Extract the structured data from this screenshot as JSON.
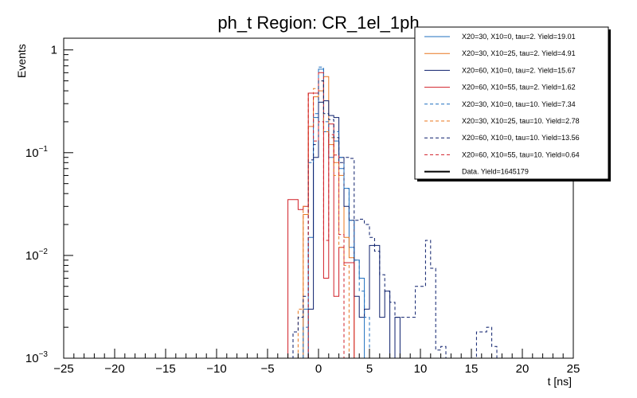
{
  "chart_data": {
    "type": "step-histogram",
    "title": "ph_t Region: CR_1el_1ph",
    "xlabel": "t [ns]",
    "ylabel": "Events",
    "xlim": [
      -25,
      25
    ],
    "ylim": [
      0.001,
      1.3
    ],
    "yscale": "log",
    "bin_width": 0.5,
    "grid": false,
    "legend_position": "top-right",
    "x_ticks": [
      {
        "value": -25,
        "label": "−25"
      },
      {
        "value": -20,
        "label": "−20"
      },
      {
        "value": -15,
        "label": "−15"
      },
      {
        "value": -10,
        "label": "−10"
      },
      {
        "value": -5,
        "label": "−5"
      },
      {
        "value": 0,
        "label": "0"
      },
      {
        "value": 5,
        "label": "5"
      },
      {
        "value": 10,
        "label": "10"
      },
      {
        "value": 15,
        "label": "15"
      },
      {
        "value": 20,
        "label": "20"
      },
      {
        "value": 25,
        "label": "25"
      }
    ],
    "y_ticks": [
      {
        "value": 1,
        "label": "1",
        "mantissa": "",
        "exponent": ""
      },
      {
        "value": 0.1,
        "label": "",
        "mantissa": "10",
        "exponent": "−1"
      },
      {
        "value": 0.01,
        "label": "",
        "mantissa": "10",
        "exponent": "−2"
      },
      {
        "value": 0.001,
        "label": "",
        "mantissa": "10",
        "exponent": "−3"
      }
    ],
    "series": [
      {
        "name": "X20=30, X10=0, tau=2. Yield=19.01",
        "color": "#1f6fbf",
        "dash": "solid",
        "bins": [
          [
            -1.5,
            0.003
          ],
          [
            -1,
            0.015
          ],
          [
            -0.5,
            0.22
          ],
          [
            0,
            0.65
          ],
          [
            0.5,
            0.16
          ],
          [
            1,
            0.09
          ],
          [
            1.5,
            0.13
          ],
          [
            2,
            0.07
          ],
          [
            2.5,
            0.045
          ],
          [
            3,
            0.012
          ],
          [
            3.5,
            0.009
          ],
          [
            4,
            0.006
          ]
        ]
      },
      {
        "name": "X20=30, X10=25, tau=2. Yield=4.91",
        "color": "#e8761e",
        "dash": "solid",
        "bins": [
          [
            -1.5,
            0.025
          ],
          [
            -1,
            0.18
          ],
          [
            -0.5,
            0.35
          ],
          [
            0,
            0.4
          ],
          [
            0.5,
            0.55
          ],
          [
            1,
            0.12
          ],
          [
            1.5,
            0.08
          ],
          [
            2,
            0.06
          ],
          [
            2.5,
            0.015
          ],
          [
            3,
            0.0095
          ]
        ]
      },
      {
        "name": "X20=60, X10=0, tau=2. Yield=15.67",
        "color": "#0b1e6b",
        "dash": "solid",
        "bins": [
          [
            -1,
            0.003
          ],
          [
            -0.5,
            0.09
          ],
          [
            0,
            0.31
          ],
          [
            0.5,
            0.32
          ],
          [
            1,
            0.23
          ],
          [
            1.5,
            0.22
          ],
          [
            2,
            0.09
          ],
          [
            2.5,
            0.03
          ],
          [
            3,
            0.022
          ],
          [
            3.5,
            0.004
          ],
          [
            4,
            0.0025
          ],
          [
            4.5,
            0.003
          ],
          [
            5,
            0.0125
          ],
          [
            5.5,
            0.0125
          ],
          [
            6,
            0.0025
          ],
          [
            6.5,
            0.0045
          ],
          [
            7,
            0.001
          ],
          [
            7.5,
            0.0025
          ],
          [
            8,
            0.001
          ]
        ]
      },
      {
        "name": "X20=60, X10=55, tau=2. Yield=1.62",
        "color": "#d11f27",
        "dash": "solid",
        "bins": [
          [
            -3,
            0.035
          ],
          [
            -2.5,
            0.035
          ],
          [
            -2,
            0.028
          ],
          [
            -1.5,
            0.03
          ],
          [
            -1,
            0.38
          ],
          [
            -0.5,
            0.38
          ],
          [
            0,
            0.6
          ],
          [
            0.5,
            0.006
          ],
          [
            1,
            0.19
          ],
          [
            1.5,
            0.004
          ],
          [
            2,
            0.012
          ],
          [
            2.5,
            0.0085
          ],
          [
            3,
            0.0085
          ]
        ]
      },
      {
        "name": "X20=30, X10=0, tau=10. Yield=7.34",
        "color": "#1f6fbf",
        "dash": "dashed",
        "bins": [
          [
            -1.5,
            0.002
          ],
          [
            -1,
            0.08
          ],
          [
            -0.5,
            0.24
          ],
          [
            0,
            0.68
          ],
          [
            0.5,
            0.2
          ],
          [
            1,
            0.14
          ],
          [
            1.5,
            0.16
          ],
          [
            2,
            0.09
          ],
          [
            2.5,
            0.045
          ],
          [
            3,
            0.022
          ],
          [
            3.5,
            0.009
          ],
          [
            4,
            0.0045
          ],
          [
            4.5,
            0.0025
          ]
        ]
      },
      {
        "name": "X20=30, X10=25, tau=10. Yield=2.78",
        "color": "#e8761e",
        "dash": "dashed",
        "bins": [
          [
            -2,
            0.003
          ],
          [
            -1.5,
            0.03
          ],
          [
            -1,
            0.38
          ],
          [
            -0.5,
            0.42
          ],
          [
            0,
            0.5
          ],
          [
            0.5,
            0.16
          ],
          [
            1,
            0.14
          ],
          [
            1.5,
            0.06
          ],
          [
            2,
            0.012
          ],
          [
            2.5,
            0.008
          ]
        ]
      },
      {
        "name": "X20=60, X10=0, tau=10. Yield=13.56",
        "color": "#0b1e6b",
        "dash": "dashed",
        "bins": [
          [
            -2.5,
            0.0018
          ],
          [
            -2,
            0.0025
          ],
          [
            -1.5,
            0.004
          ],
          [
            -1,
            0.085
          ],
          [
            -0.5,
            0.12
          ],
          [
            0,
            0.5
          ],
          [
            0.5,
            0.24
          ],
          [
            1,
            0.21
          ],
          [
            1.5,
            0.14
          ],
          [
            2,
            0.08
          ],
          [
            2.5,
            0.09
          ],
          [
            3,
            0.088
          ],
          [
            3.5,
            0.022
          ],
          [
            4,
            0.0225
          ],
          [
            4.5,
            0.02
          ],
          [
            5,
            0.015
          ],
          [
            5.5,
            0.011
          ],
          [
            6,
            0.0065
          ],
          [
            6.5,
            0.0045
          ],
          [
            7,
            0.0035
          ],
          [
            7.5,
            0.0025
          ],
          [
            8,
            0.0025
          ],
          [
            8.5,
            0.0025
          ],
          [
            9,
            0.0025
          ],
          [
            9.5,
            0.005
          ],
          [
            10,
            0.005
          ],
          [
            10.5,
            0.014
          ],
          [
            11,
            0.0075
          ],
          [
            11.5,
            0.0012
          ],
          [
            12,
            0.0013
          ],
          [
            12.5,
            0.001
          ],
          [
            13,
            0.001
          ],
          [
            13.5,
            0.001
          ],
          [
            14,
            0.001
          ],
          [
            14.5,
            0.001
          ],
          [
            15,
            0.001
          ],
          [
            15.5,
            0.0018
          ],
          [
            16,
            0.0018
          ],
          [
            16.5,
            0.002
          ],
          [
            17,
            0.0013
          ]
        ]
      },
      {
        "name": "X20=60, X10=55, tau=10. Yield=0.64",
        "color": "#d11f27",
        "dash": "dashed",
        "bins": [
          [
            -1,
            0.38
          ],
          [
            -0.5,
            0.13
          ],
          [
            0,
            0.2
          ],
          [
            0.5,
            0.014
          ],
          [
            1,
            0.15
          ],
          [
            1.5,
            0.095
          ],
          [
            2,
            0.016
          ]
        ]
      },
      {
        "name": "Data. Yield=1645179",
        "color": "#000000",
        "dash": "solid-thick",
        "bins": []
      }
    ]
  }
}
